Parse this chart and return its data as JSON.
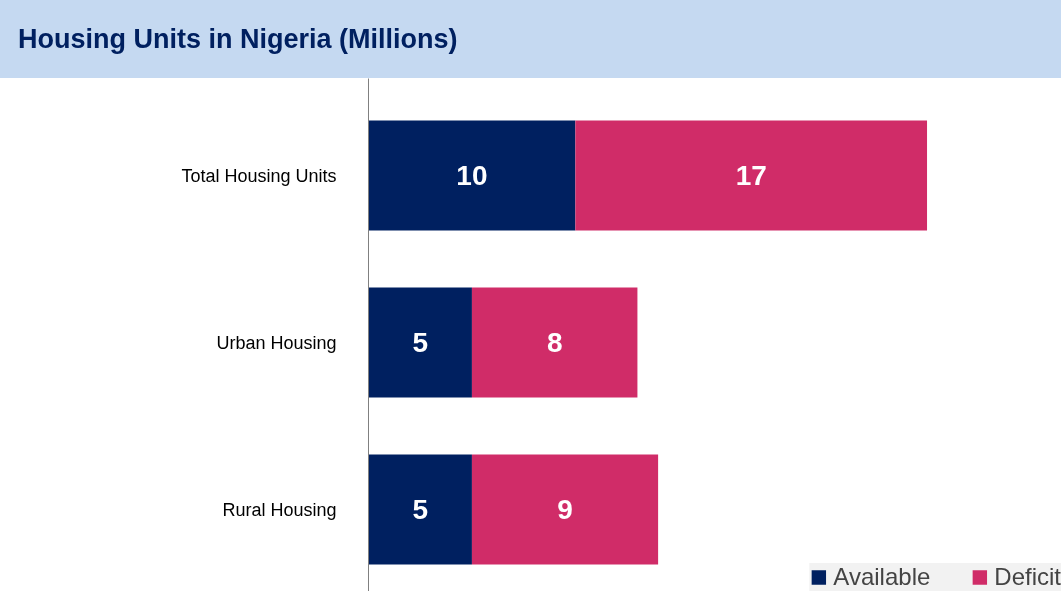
{
  "chart_data": {
    "type": "bar",
    "orientation": "horizontal",
    "stacked": true,
    "title": "Housing Units in Nigeria (Millions)",
    "categories": [
      "Total Housing Units",
      "Urban Housing",
      "Rural Housing"
    ],
    "series": [
      {
        "name": "Available",
        "color": "#002060",
        "values": [
          10,
          5,
          5
        ]
      },
      {
        "name": "Deficit",
        "color": "#d02c68",
        "values": [
          17,
          8,
          9
        ]
      }
    ],
    "xlim": [
      0,
      33.5
    ],
    "data_labels": true,
    "legend": "bottom right",
    "tick_labels": "y",
    "grid": false
  }
}
